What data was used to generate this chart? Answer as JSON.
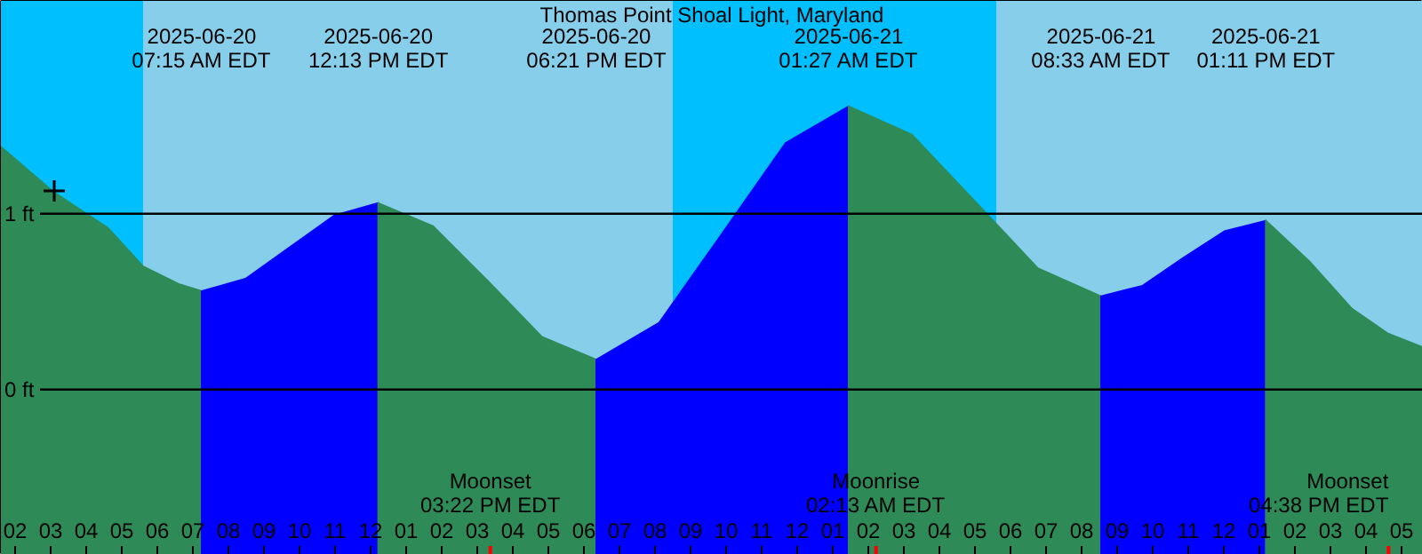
{
  "chart_data": {
    "type": "area",
    "title": "Thomas Point Shoal Light, Maryland",
    "xlim": [
      "2025-06-20T01:36",
      "2025-06-21T17:36"
    ],
    "ylim": [
      -0.94,
      2.21
    ],
    "xticks": [
      {
        "value": "2025-06-20T02:00",
        "label": "02"
      },
      {
        "value": "2025-06-20T03:00",
        "label": "03"
      },
      {
        "value": "2025-06-20T04:00",
        "label": "04"
      },
      {
        "value": "2025-06-20T05:00",
        "label": "05"
      },
      {
        "value": "2025-06-20T06:00",
        "label": "06"
      },
      {
        "value": "2025-06-20T07:00",
        "label": "07"
      },
      {
        "value": "2025-06-20T08:00",
        "label": "08"
      },
      {
        "value": "2025-06-20T09:00",
        "label": "09"
      },
      {
        "value": "2025-06-20T10:00",
        "label": "10"
      },
      {
        "value": "2025-06-20T11:00",
        "label": "11"
      },
      {
        "value": "2025-06-20T12:00",
        "label": "12"
      },
      {
        "value": "2025-06-20T13:00",
        "label": "01"
      },
      {
        "value": "2025-06-20T14:00",
        "label": "02"
      },
      {
        "value": "2025-06-20T15:00",
        "label": "03"
      },
      {
        "value": "2025-06-20T16:00",
        "label": "04"
      },
      {
        "value": "2025-06-20T17:00",
        "label": "05"
      },
      {
        "value": "2025-06-20T18:00",
        "label": "06"
      },
      {
        "value": "2025-06-20T19:00",
        "label": "07"
      },
      {
        "value": "2025-06-20T20:00",
        "label": "08"
      },
      {
        "value": "2025-06-20T21:00",
        "label": "09"
      },
      {
        "value": "2025-06-20T22:00",
        "label": "10"
      },
      {
        "value": "2025-06-20T23:00",
        "label": "11"
      },
      {
        "value": "2025-06-21T00:00",
        "label": "12"
      },
      {
        "value": "2025-06-21T01:00",
        "label": "01"
      },
      {
        "value": "2025-06-21T02:00",
        "label": "02"
      },
      {
        "value": "2025-06-21T03:00",
        "label": "03"
      },
      {
        "value": "2025-06-21T04:00",
        "label": "04"
      },
      {
        "value": "2025-06-21T05:00",
        "label": "05"
      },
      {
        "value": "2025-06-21T06:00",
        "label": "06"
      },
      {
        "value": "2025-06-21T07:00",
        "label": "07"
      },
      {
        "value": "2025-06-21T08:00",
        "label": "08"
      },
      {
        "value": "2025-06-21T09:00",
        "label": "09"
      },
      {
        "value": "2025-06-21T10:00",
        "label": "10"
      },
      {
        "value": "2025-06-21T11:00",
        "label": "11"
      },
      {
        "value": "2025-06-21T12:00",
        "label": "12"
      },
      {
        "value": "2025-06-21T13:00",
        "label": "01"
      },
      {
        "value": "2025-06-21T14:00",
        "label": "02"
      },
      {
        "value": "2025-06-21T15:00",
        "label": "03"
      },
      {
        "value": "2025-06-21T16:00",
        "label": "04"
      },
      {
        "value": "2025-06-21T17:00",
        "label": "05"
      }
    ],
    "yticks": [
      {
        "value": 0,
        "label": "0 ft"
      },
      {
        "value": 1,
        "label": "1 ft"
      }
    ],
    "grid": "y",
    "bands": [
      {
        "axis": "x",
        "from": "2025-06-20T01:36",
        "to": "2025-06-20T05:36",
        "color": "#00bfff"
      },
      {
        "axis": "x",
        "from": "2025-06-20T05:36",
        "to": "2025-06-20T20:30",
        "color": "#87ceeb"
      },
      {
        "axis": "x",
        "from": "2025-06-20T20:30",
        "to": "2025-06-21T05:36",
        "color": "#00bfff"
      },
      {
        "axis": "x",
        "from": "2025-06-21T05:36",
        "to": "2025-06-21T17:36",
        "color": "#87ceeb"
      }
    ],
    "ref_lines": [
      {
        "axis": "x",
        "value": "2025-06-20T15:22",
        "label": "Moonset\n03:22 PM EDT",
        "color": "#ff0000"
      },
      {
        "axis": "x",
        "value": "2025-06-21T02:13",
        "label": "Moonrise\n02:13 AM EDT",
        "color": "#ff0000"
      },
      {
        "axis": "x",
        "value": "2025-06-21T16:38",
        "label": "Moonset\n04:38 PM EDT",
        "color": "#ff0000"
      }
    ],
    "series": [
      {
        "color": "#2e8b57",
        "x": [
          "2025-06-20T01:36",
          "2025-06-20T03:06",
          "2025-06-20T04:36",
          "2025-06-20T05:36",
          "2025-06-20T06:36",
          "2025-06-20T07:15"
        ],
        "values": [
          1.38,
          1.12,
          0.92,
          0.7,
          0.6,
          0.56
        ]
      },
      {
        "color": "#0000ff",
        "x": [
          "2025-06-20T07:15",
          "2025-06-20T08:29",
          "2025-06-20T09:44",
          "2025-06-20T10:59",
          "2025-06-20T12:13"
        ],
        "values": [
          0.56,
          0.63,
          0.81,
          0.99,
          1.06
        ]
      },
      {
        "color": "#2e8b57",
        "x": [
          "2025-06-20T12:13",
          "2025-06-20T13:45",
          "2025-06-20T15:17",
          "2025-06-20T16:49",
          "2025-06-20T18:21"
        ],
        "values": [
          1.06,
          0.93,
          0.62,
          0.3,
          0.17
        ]
      },
      {
        "color": "#0000ff",
        "x": [
          "2025-06-20T18:21",
          "2025-06-20T20:07",
          "2025-06-20T21:54",
          "2025-06-20T23:40",
          "2025-06-21T01:27"
        ],
        "values": [
          0.17,
          0.38,
          0.89,
          1.4,
          1.61
        ]
      },
      {
        "color": "#2e8b57",
        "x": [
          "2025-06-21T01:27",
          "2025-06-21T03:13",
          "2025-06-21T05:00",
          "2025-06-21T06:46",
          "2025-06-21T08:33"
        ],
        "values": [
          1.61,
          1.45,
          1.07,
          0.69,
          0.53
        ]
      },
      {
        "color": "#0000ff",
        "x": [
          "2025-06-21T08:33",
          "2025-06-21T09:43",
          "2025-06-21T10:52",
          "2025-06-21T12:01",
          "2025-06-21T13:11"
        ],
        "values": [
          0.53,
          0.59,
          0.75,
          0.9,
          0.96
        ]
      },
      {
        "color": "#2e8b57",
        "x": [
          "2025-06-21T13:11",
          "2025-06-21T14:24",
          "2025-06-21T15:36",
          "2025-06-21T16:36",
          "2025-06-21T17:36"
        ],
        "values": [
          0.96,
          0.73,
          0.46,
          0.32,
          0.24
        ]
      },
      {
        "type": "scatter",
        "marker": "cross",
        "color": "#000000",
        "x": [
          "2025-06-20T03:06"
        ],
        "values": [
          1.13
        ]
      }
    ],
    "annotations": [
      "2025-06-20\n07:15 AM EDT",
      "2025-06-20\n12:13 PM EDT",
      "2025-06-20\n06:21 PM EDT",
      "2025-06-21\n01:27 AM EDT",
      "2025-06-21\n08:33 AM EDT",
      "2025-06-21\n01:11 PM EDT"
    ]
  }
}
